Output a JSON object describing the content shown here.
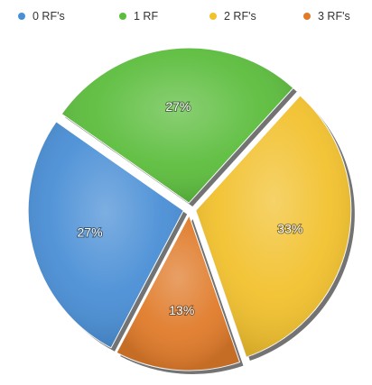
{
  "chart_data": {
    "type": "pie",
    "categories": [
      "0 RF's",
      "1 RF",
      "2 RF's",
      "3 RF's"
    ],
    "values": [
      27,
      27,
      33,
      13
    ],
    "labels": [
      "27%",
      "27%",
      "33%",
      "13%"
    ],
    "colors": [
      "#4a8fd6",
      "#5cbd3d",
      "#f2c12e",
      "#e07b2a"
    ],
    "legend_position": "top"
  }
}
